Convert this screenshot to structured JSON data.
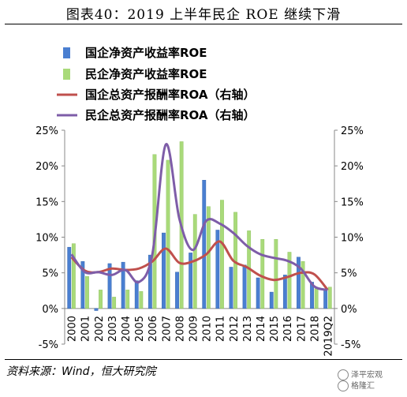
{
  "title": "图表40：2019 上半年民企 ROE 继续下滑",
  "source": "资料来源：Wind，恒大研究院",
  "watermark": [
    "泽平宏观",
    "格隆汇"
  ],
  "colors": {
    "soe_roe": "#4a7fd1",
    "pe_roe": "#a9da7a",
    "soe_roa": "#c0504d",
    "pe_roa": "#7e5da8"
  },
  "chart_data": {
    "type": "bar",
    "categories": [
      "2000",
      "2001",
      "2002",
      "2003",
      "2004",
      "2005",
      "2006",
      "2007",
      "2008",
      "2009",
      "2010",
      "2011",
      "2012",
      "2013",
      "2014",
      "2015",
      "2016",
      "2017",
      "2018",
      "2019Q2"
    ],
    "ylim": [
      -5,
      25
    ],
    "yticks": [
      "-5%",
      "0%",
      "5%",
      "10%",
      "15%",
      "20%",
      "25%"
    ],
    "yticks_right": [
      "-5%",
      "0%",
      "5%",
      "10%",
      "15%",
      "20%",
      "25%"
    ],
    "series": [
      {
        "name": "国企净资产收益率ROE",
        "kind": "bar",
        "values": [
          8.6,
          6.6,
          -0.3,
          6.3,
          6.5,
          3.9,
          7.5,
          10.6,
          5.1,
          7.8,
          18.0,
          11.0,
          5.8,
          6.1,
          4.3,
          2.3,
          4.7,
          7.2,
          3.7,
          2.6
        ]
      },
      {
        "name": "民企净资产收益率ROE",
        "kind": "bar",
        "values": [
          9.1,
          4.5,
          2.6,
          1.6,
          2.6,
          2.4,
          21.6,
          20.8,
          23.4,
          13.2,
          14.3,
          15.2,
          13.5,
          10.9,
          9.7,
          9.7,
          7.9,
          6.6,
          2.8,
          3.0
        ]
      },
      {
        "name": "国企总资产报酬率ROA（右轴）",
        "kind": "line",
        "values": [
          7.2,
          5.3,
          5.1,
          5.6,
          5.4,
          5.6,
          6.6,
          8.4,
          6.4,
          6.6,
          7.6,
          9.4,
          6.7,
          5.8,
          4.6,
          4.0,
          4.4,
          5.0,
          4.8,
          2.6
        ]
      },
      {
        "name": "民企总资产报酬率ROA（右轴）",
        "kind": "line",
        "values": [
          7.6,
          5.1,
          5.1,
          4.7,
          5.4,
          3.7,
          7.6,
          23.0,
          12.6,
          8.2,
          12.3,
          11.9,
          10.6,
          8.8,
          7.6,
          7.1,
          6.7,
          5.6,
          3.1,
          2.6
        ]
      }
    ]
  }
}
